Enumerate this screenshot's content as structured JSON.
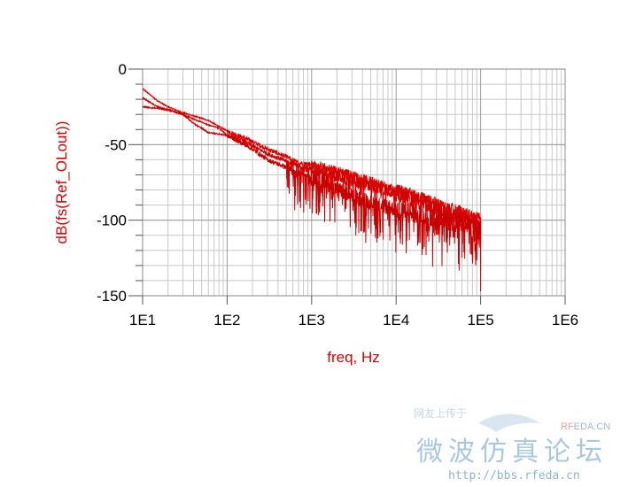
{
  "chart_data": {
    "type": "line",
    "title": "",
    "xlabel": "freq, Hz",
    "ylabel": "dB(fs(Ref_OLout))",
    "xscale": "log",
    "xlim": [
      10,
      1000000
    ],
    "ylim": [
      -150,
      0
    ],
    "xticks": [
      10,
      100,
      1000,
      10000,
      100000,
      1000000
    ],
    "xtick_labels": [
      "1E1",
      "1E2",
      "1E3",
      "1E4",
      "1E5",
      "1E6"
    ],
    "yticks": [
      0,
      -50,
      -100,
      -150
    ],
    "ytick_labels": [
      "0",
      "-50",
      "-100",
      "-150"
    ],
    "grid": true,
    "legend": "none",
    "line_color": "#e00000",
    "series": [
      {
        "x": [
          10,
          15,
          20,
          30,
          40,
          60,
          80,
          100,
          150,
          200,
          300,
          500,
          700,
          1000,
          2000,
          3000,
          5000,
          10000,
          20000,
          30000,
          50000,
          70000,
          100000
        ],
        "values": [
          -13,
          -21,
          -25,
          -29,
          -31,
          -34,
          -38,
          -41,
          -45,
          -48,
          -53,
          -58,
          -62,
          -63,
          -67,
          -70,
          -74,
          -80,
          -85,
          -89,
          -93,
          -96,
          -99
        ]
      },
      {
        "x": [
          10,
          15,
          20,
          30,
          40,
          60,
          80,
          100,
          150,
          200,
          300,
          500,
          700,
          1000,
          2000,
          3000,
          5000,
          10000,
          20000,
          30000,
          50000,
          70000,
          100000
        ],
        "values": [
          -19,
          -25,
          -27,
          -30,
          -33,
          -37,
          -39,
          -44,
          -47,
          -51,
          -56,
          -61,
          -64,
          -66,
          -71,
          -74,
          -77,
          -82,
          -88,
          -92,
          -96,
          -99,
          -103
        ]
      },
      {
        "x": [
          10,
          15,
          20,
          30,
          40,
          60,
          80,
          100,
          150,
          200,
          300,
          500,
          700,
          1000,
          2000,
          3000,
          5000,
          10000,
          20000,
          30000,
          50000,
          70000,
          100000
        ],
        "values": [
          -25,
          -26,
          -27,
          -30,
          -36,
          -42,
          -43,
          -44,
          -49,
          -53,
          -60,
          -65,
          -68,
          -72,
          -79,
          -84,
          -88,
          -93,
          -97,
          -99,
          -101,
          -103,
          -107
        ]
      }
    ]
  },
  "watermark": {
    "tagline": "网友上传于",
    "brand_prefix": "RF",
    "brand_suffix": "EDA.CN",
    "forum_name": "微波仿真论坛",
    "url": "http://bbs.rfeda.cn"
  }
}
